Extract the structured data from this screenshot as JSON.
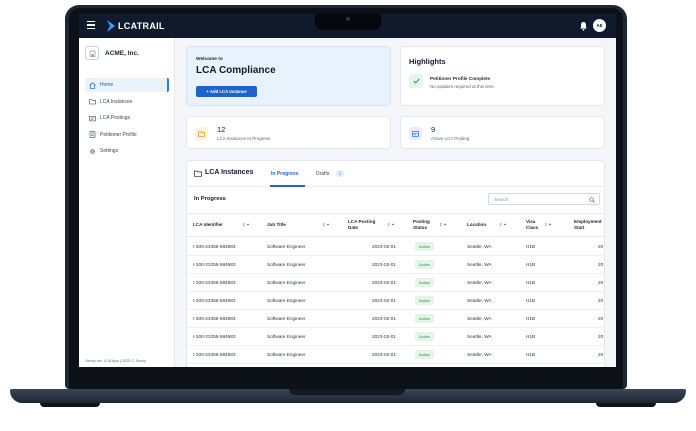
{
  "app": {
    "logo_text": "LCATRAIL",
    "avatar_initials": "AE"
  },
  "sidebar": {
    "org_name": "ACME, Inc.",
    "items": [
      {
        "label": "Home",
        "icon": "home-icon",
        "active": true
      },
      {
        "label": "LCA Instances",
        "icon": "folder-icon",
        "active": false
      },
      {
        "label": "LCA Postings",
        "icon": "postings-icon",
        "active": false
      },
      {
        "label": "Petitioner Profile",
        "icon": "profile-icon",
        "active": false
      },
      {
        "label": "Settings",
        "icon": "gear-icon",
        "active": false
      }
    ],
    "footer": "Jinvoy Inc. LCA App | 2025 © Jinvoy"
  },
  "welcome": {
    "subtitle": "Welcome to",
    "title": "LCA Compliance",
    "button_label": "+ Add LCA Instance"
  },
  "highlights": {
    "title": "Highlights",
    "item_title": "Petitioner Profile Complete",
    "item_sub": "No updates required at this time."
  },
  "stats": [
    {
      "value": "12",
      "label": "LCA Instances In Progress"
    },
    {
      "value": "9",
      "label": "Active LCA Posting"
    }
  ],
  "table": {
    "title": "LCA Instances",
    "tabs": {
      "in_progress": "In Progress",
      "drafts": "Drafts",
      "drafts_count": "1"
    },
    "section_label": "In Progress",
    "search_placeholder": "Search",
    "columns": {
      "c1": "LCA Identifier",
      "c2": "Job Title",
      "c3a": "LCA Posting",
      "c3b": "Date",
      "c4a": "Posting",
      "c4b": "Status",
      "c5": "Location",
      "c6a": "Visa",
      "c6b": "Class",
      "c7a": "Employment",
      "c7b": "Start"
    },
    "rows": [
      {
        "id": "I-200-23355-584983",
        "job": "Software Engineer",
        "date": "2023-02-01",
        "status": "Active",
        "location": "Seattle, WA",
        "visa": "H1B",
        "start": "20"
      },
      {
        "id": "I-200-23355-584983",
        "job": "Software Engineer",
        "date": "2023-02-01",
        "status": "Active",
        "location": "Seattle, WA",
        "visa": "H1B",
        "start": "20"
      },
      {
        "id": "I-200-23355-584983",
        "job": "Software Engineer",
        "date": "2023-02-01",
        "status": "Active",
        "location": "Seattle, WA",
        "visa": "H1B",
        "start": "20"
      },
      {
        "id": "I-200-23355-584983",
        "job": "Software Engineer",
        "date": "2023-02-01",
        "status": "Active",
        "location": "Seattle, WA",
        "visa": "H1B",
        "start": "20"
      },
      {
        "id": "I-200-23355-584983",
        "job": "Software Engineer",
        "date": "2023-02-01",
        "status": "Active",
        "location": "Seattle, WA",
        "visa": "H1B",
        "start": "20"
      },
      {
        "id": "I-200-23355-584983",
        "job": "Software Engineer",
        "date": "2023-02-01",
        "status": "Active",
        "location": "Seattle, WA",
        "visa": "H1B",
        "start": "20"
      },
      {
        "id": "I-200-23355-584983",
        "job": "Software Engineer",
        "date": "2023-02-01",
        "status": "Active",
        "location": "Seattle, WA",
        "visa": "H1B",
        "start": "20"
      },
      {
        "id": "I-200-23355-584983",
        "job": "Software Engineer",
        "date": "2023-02-01",
        "status": "Active",
        "location": "Seattle, WA",
        "visa": "H1B",
        "start": "20"
      }
    ]
  },
  "colors": {
    "primary": "#1f63c8",
    "header_bg": "#0f1b2d",
    "active_green": "#2a9150"
  }
}
